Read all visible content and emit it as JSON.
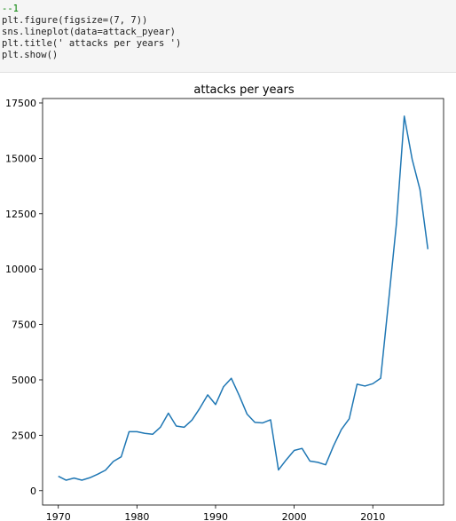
{
  "code_cell": {
    "lines": [
      "--1",
      "plt.figure(figsize=(7, 7))",
      "sns.lineplot(data=attack_pyear)",
      "plt.title(' attacks per years ')",
      "plt.show()"
    ]
  },
  "colors": {
    "line": "#1f77b4",
    "axes": "#000000",
    "comment": "#008000",
    "code_bg": "#f5f5f5"
  },
  "chart_data": {
    "type": "line",
    "title": "attacks per years",
    "xlabel": "",
    "ylabel": "",
    "xlim": [
      1968,
      2019
    ],
    "ylim": [
      -650,
      17700
    ],
    "x_ticks": [
      1970,
      1980,
      1990,
      2000,
      2010
    ],
    "y_ticks": [
      0,
      2500,
      5000,
      7500,
      10000,
      12500,
      15000,
      17500
    ],
    "grid": false,
    "legend": false,
    "series": [
      {
        "x": [
          1970,
          1971,
          1972,
          1973,
          1974,
          1975,
          1976,
          1977,
          1978,
          1979,
          1980,
          1981,
          1982,
          1983,
          1984,
          1985,
          1986,
          1987,
          1988,
          1989,
          1990,
          1991,
          1992,
          1993,
          1994,
          1995,
          1996,
          1997,
          1998,
          1999,
          2000,
          2001,
          2002,
          2003,
          2004,
          2005,
          2006,
          2007,
          2008,
          2009,
          2010,
          2011,
          2012,
          2013,
          2014,
          2015,
          2016,
          2017
        ],
        "y": [
          651,
          471,
          568,
          473,
          581,
          740,
          923,
          1319,
          1526,
          2662,
          2662,
          2586,
          2544,
          2870,
          3495,
          2915,
          2860,
          3183,
          3721,
          4324,
          3887,
          4683,
          5071,
          4300,
          3458,
          3081,
          3058,
          3197,
          934,
          1395,
          1814,
          1906,
          1333,
          1278,
          1166,
          2017,
          2758,
          3242,
          4805,
          4721,
          4826,
          5076,
          8522,
          12036,
          16903,
          14965,
          13587,
          10900
        ]
      }
    ]
  }
}
